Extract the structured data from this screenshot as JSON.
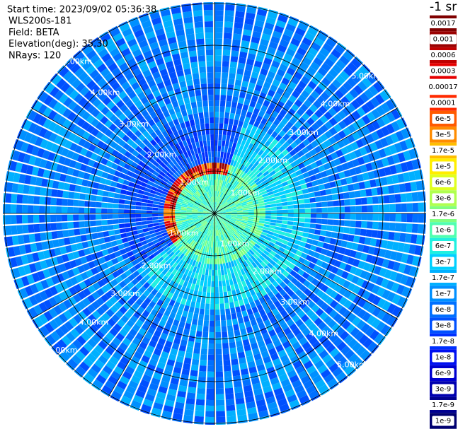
{
  "header": {
    "lines": [
      "Start time: 2023/09/02 05:36:38",
      "WLS200s-181",
      "Field: BETA",
      "Elevation(deg): 35.30",
      "NRays: 120"
    ]
  },
  "range_labels": [
    "1.00km",
    "2.00km",
    "3.00km",
    "4.00km",
    "5.00km"
  ],
  "colorbar": {
    "title": "-1 sr",
    "labels": [
      {
        "label": "0.0017",
        "color": "#7f0000"
      },
      {
        "label": "0.001",
        "color": "#9a0000"
      },
      {
        "label": "0.0006",
        "color": "#c00000"
      },
      {
        "label": "0.0003",
        "color": "#e60000"
      },
      {
        "label": "0.00017",
        "color": "#ffffff"
      },
      {
        "label": "0.0001",
        "color": "#ff2a00"
      },
      {
        "label": "6e-5",
        "color": "#ff5a00"
      },
      {
        "label": "3e-5",
        "color": "#ff8c00"
      },
      {
        "label": "1.7e-5",
        "color": "#ffbe00"
      },
      {
        "label": "1e-5",
        "color": "#ffee00"
      },
      {
        "label": "6e-6",
        "color": "#e0ff20"
      },
      {
        "label": "3e-6",
        "color": "#b0ff50"
      },
      {
        "label": "1.7e-6",
        "color": "#80ff80"
      },
      {
        "label": "1e-6",
        "color": "#50ffb0"
      },
      {
        "label": "6e-7",
        "color": "#20f0e0"
      },
      {
        "label": "3e-7",
        "color": "#00d0ff"
      },
      {
        "label": "1.7e-7",
        "color": "#00b0ff"
      },
      {
        "label": "1e-7",
        "color": "#0090ff"
      },
      {
        "label": "6e-8",
        "color": "#0070ff"
      },
      {
        "label": "3e-8",
        "color": "#0050ff"
      },
      {
        "label": "1.7e-8",
        "color": "#0030ff"
      },
      {
        "label": "1e-8",
        "color": "#0010f0"
      },
      {
        "label": "6e-9",
        "color": "#0000d0"
      },
      {
        "label": "3e-9",
        "color": "#0000b0"
      },
      {
        "label": "1.7e-9",
        "color": "#000090"
      },
      {
        "label": "1e-9",
        "color": "#000070"
      }
    ]
  }
}
